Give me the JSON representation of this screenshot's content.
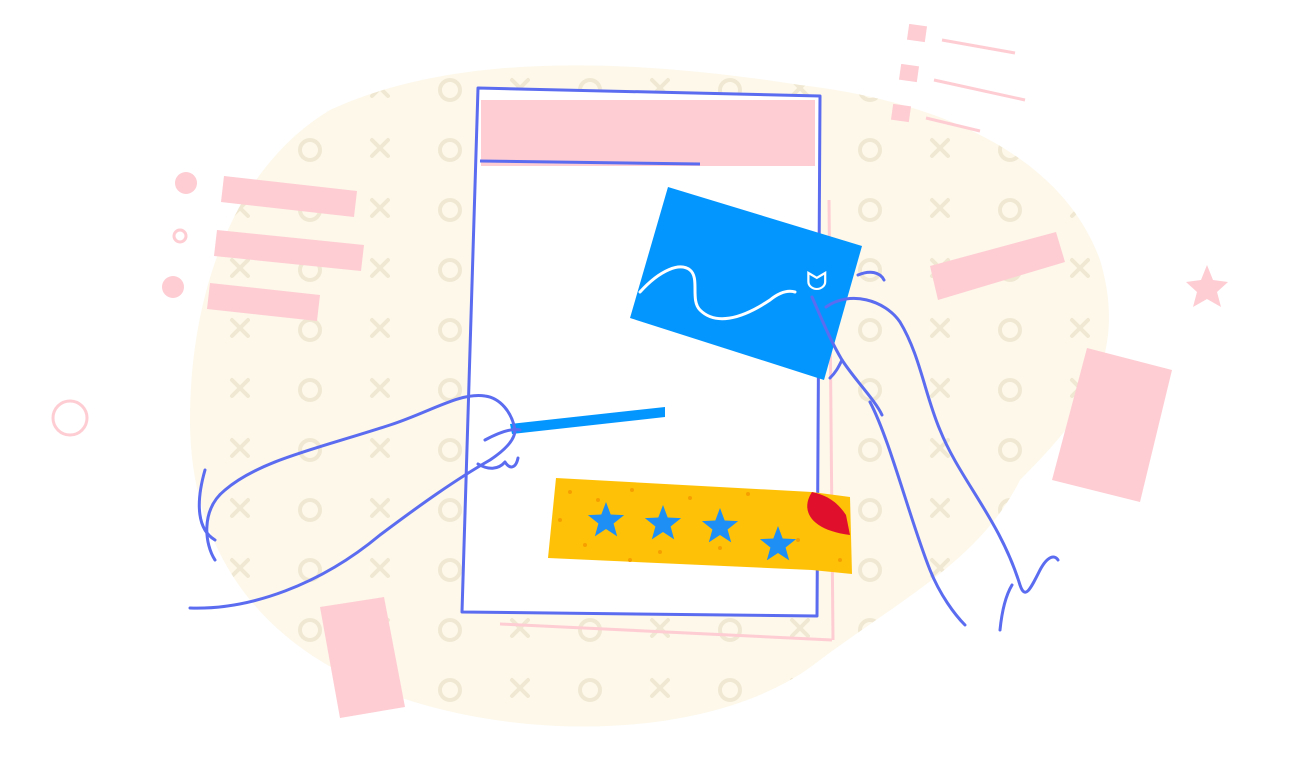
{
  "illustration": {
    "stars_shown": 4,
    "signature_glyph": "ᗢ",
    "colors": {
      "background_blob": "#fdf8ea",
      "pattern": "#f3ecd9",
      "accent_pink": "#fecdd3",
      "line_blue": "#5b6cf0",
      "card_blue": "#0496ff",
      "ribbon_yellow": "#ffc107",
      "star_blue": "#1e90f5",
      "corner_red": "#e0102c",
      "paper_white": "#ffffff"
    },
    "icons": [
      "star-icon",
      "hand-icon",
      "pen-icon",
      "signature-card-icon",
      "document-icon"
    ]
  }
}
